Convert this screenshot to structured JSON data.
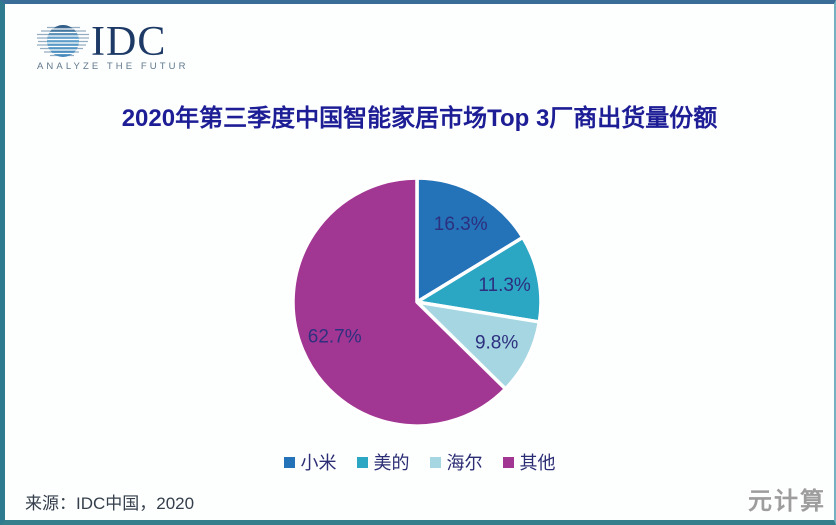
{
  "brand": {
    "logo_text": "IDC",
    "tagline": "ANALYZE THE FUTURE",
    "globe_icon": "striped-globe-icon"
  },
  "header": {
    "title": "2020年第三季度中国智能家居市场Top 3厂商出货量份额"
  },
  "footer": {
    "source": "来源：IDC中国，2020",
    "watermark": "元计算"
  },
  "colors": {
    "title_text": "#1d1d96",
    "slice_label_text": "#2d2f7f",
    "legend_text": "#2c2e75",
    "frame_border_teal": "#2e7a8e",
    "frame_border_top": "#3a6e99"
  },
  "chart_data": {
    "type": "pie",
    "title": "2020年第三季度中国智能家居市场Top 3厂商出货量份额",
    "categories": [
      "小米",
      "美的",
      "海尔",
      "其他"
    ],
    "category_slugs": [
      "xiaomi",
      "midea",
      "haier",
      "others"
    ],
    "values": [
      16.3,
      11.3,
      9.8,
      62.7
    ],
    "slice_labels": [
      "16.3%",
      "11.3%",
      "9.8%",
      "62.7%"
    ],
    "slice_colors": [
      "#2473b8",
      "#2ba6c3",
      "#a5d6e2",
      "#a23793"
    ],
    "start_angle_deg": 0,
    "direction": "clockwise",
    "slice_gap_stroke": "#ffffff",
    "legend_position": "bottom",
    "label_radius_frac": 0.72,
    "grid": false,
    "donut": false
  }
}
